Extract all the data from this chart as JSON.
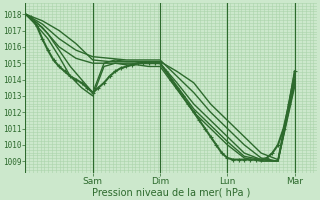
{
  "bg_color": "#cce8cc",
  "grid_color": "#aad4aa",
  "line_color": "#2d6a2d",
  "ylabel": "Pression niveau de la mer( hPa )",
  "yticks": [
    1009,
    1010,
    1011,
    1012,
    1013,
    1014,
    1015,
    1016,
    1017,
    1018
  ],
  "ylim": [
    1008.3,
    1018.7
  ],
  "day_labels": [
    "Sam",
    "Dim",
    "Lun",
    "Mar"
  ],
  "day_positions": [
    72,
    144,
    216,
    288
  ],
  "xlim": [
    0,
    312
  ],
  "lines": [
    {
      "x": [
        0,
        18,
        36,
        54,
        72,
        90,
        108,
        126,
        144,
        162,
        180,
        198,
        216,
        234,
        252,
        270,
        288
      ],
      "y": [
        1018,
        1017.6,
        1017.0,
        1016.2,
        1015.2,
        1015.1,
        1015.1,
        1015.1,
        1015.1,
        1014.5,
        1013.8,
        1012.5,
        1011.5,
        1010.5,
        1009.5,
        1009.1,
        1014.5
      ],
      "lw": 1.0,
      "marker": null,
      "ms": 0
    },
    {
      "x": [
        0,
        18,
        36,
        54,
        72,
        90,
        108,
        126,
        144,
        162,
        180,
        198,
        216,
        234,
        252,
        270,
        288
      ],
      "y": [
        1018,
        1017.4,
        1016.5,
        1015.8,
        1015.4,
        1015.3,
        1015.2,
        1015.2,
        1015.2,
        1014.2,
        1013.2,
        1012.0,
        1011.0,
        1010.0,
        1009.2,
        1009.0,
        1014.3
      ],
      "lw": 1.0,
      "marker": null,
      "ms": 0
    },
    {
      "x": [
        0,
        18,
        36,
        54,
        72,
        90,
        108,
        126,
        144,
        162,
        180,
        198,
        216,
        234,
        252,
        270,
        288
      ],
      "y": [
        1018,
        1017.2,
        1016.0,
        1015.3,
        1015.0,
        1015.0,
        1015.0,
        1015.0,
        1015.0,
        1013.8,
        1012.5,
        1011.5,
        1010.5,
        1009.5,
        1009.1,
        1009.0,
        1014.0
      ],
      "lw": 1.0,
      "marker": null,
      "ms": 0
    },
    {
      "x": [
        0,
        12,
        24,
        36,
        48,
        60,
        72,
        84,
        96,
        108,
        120,
        132,
        144,
        162,
        180,
        198,
        216,
        234,
        252,
        270,
        288
      ],
      "y": [
        1018,
        1017.5,
        1016.8,
        1015.8,
        1014.8,
        1014.0,
        1013.2,
        1015.0,
        1015.2,
        1015.1,
        1015.1,
        1015.0,
        1015.0,
        1013.6,
        1012.2,
        1011.2,
        1010.2,
        1009.3,
        1009.1,
        1009.0,
        1013.8
      ],
      "lw": 1.0,
      "marker": null,
      "ms": 0
    },
    {
      "x": [
        0,
        12,
        24,
        36,
        48,
        60,
        72,
        84,
        96,
        108,
        120,
        132,
        144,
        162,
        180,
        198,
        216,
        234,
        252,
        270,
        288
      ],
      "y": [
        1018,
        1017.3,
        1016.5,
        1015.4,
        1014.2,
        1013.5,
        1013.0,
        1014.8,
        1015.0,
        1014.9,
        1014.9,
        1014.8,
        1014.8,
        1013.4,
        1012.0,
        1011.0,
        1010.0,
        1009.2,
        1009.0,
        1009.0,
        1013.6
      ],
      "lw": 1.0,
      "marker": null,
      "ms": 0
    },
    {
      "x": [
        0,
        6,
        12,
        18,
        24,
        30,
        36,
        42,
        48,
        54,
        60,
        66,
        72,
        78,
        84,
        90,
        96,
        102,
        108,
        114,
        120,
        126,
        132,
        138,
        144,
        150,
        156,
        162,
        168,
        174,
        180,
        186,
        192,
        198,
        204,
        210,
        216,
        222,
        228,
        234,
        240,
        246,
        252,
        258,
        264,
        270,
        276,
        282,
        288
      ],
      "y": [
        1018,
        1017.8,
        1017.3,
        1016.5,
        1015.8,
        1015.2,
        1014.8,
        1014.5,
        1014.2,
        1014.0,
        1013.8,
        1013.5,
        1013.2,
        1013.5,
        1013.8,
        1014.2,
        1014.5,
        1014.7,
        1014.8,
        1014.9,
        1015.0,
        1015.0,
        1015.0,
        1015.0,
        1015.0,
        1014.5,
        1014.0,
        1013.5,
        1013.0,
        1012.5,
        1012.0,
        1011.5,
        1011.0,
        1010.5,
        1010.0,
        1009.5,
        1009.2,
        1009.1,
        1009.1,
        1009.1,
        1009.1,
        1009.1,
        1009.1,
        1009.2,
        1009.5,
        1010.0,
        1011.0,
        1012.5,
        1014.5
      ],
      "lw": 1.5,
      "marker": "+",
      "ms": 3.5
    }
  ]
}
